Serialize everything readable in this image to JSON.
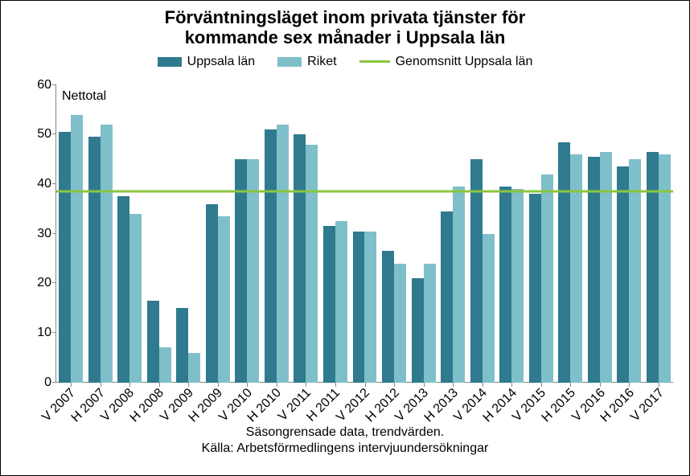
{
  "title_line1": "Förväntningsläget inom privata tjänster för",
  "title_line2": "kommande sex månader i Uppsala län",
  "title_fontsize": 22,
  "legend": {
    "series1": "Uppsala län",
    "series2": "Riket",
    "series3": "Genomsnitt Uppsala län"
  },
  "ylabel": "Nettotal",
  "chart": {
    "type": "bar",
    "categories": [
      "V 2007",
      "H 2007",
      "V 2008",
      "H 2008",
      "V 2009",
      "H 2009",
      "V 2010",
      "H 2010",
      "V 2011",
      "H 2011",
      "V 2012",
      "H 2012",
      "V 2013",
      "H 2013",
      "V 2014",
      "H 2014",
      "V 2015",
      "H 2015",
      "V 2016",
      "H 2016",
      "V 2017"
    ],
    "series": [
      {
        "name": "Uppsala län",
        "color": "#2f7a8e",
        "values": [
          50.5,
          49.5,
          37.5,
          16.5,
          15.0,
          36.0,
          45.0,
          51.0,
          50.0,
          31.5,
          30.5,
          26.5,
          21.0,
          34.5,
          45.0,
          39.5,
          38.0,
          48.5,
          45.5,
          43.5,
          46.5
        ]
      },
      {
        "name": "Riket",
        "color": "#7fbfca",
        "values": [
          54.0,
          52.0,
          34.0,
          7.0,
          6.0,
          33.5,
          45.0,
          52.0,
          48.0,
          32.5,
          30.5,
          24.0,
          24.0,
          39.5,
          30.0,
          39.0,
          42.0,
          46.0,
          46.5,
          45.0,
          46.0
        ]
      }
    ],
    "avg_line": {
      "value": 38.5,
      "color": "#8bc53f",
      "width": 3
    },
    "ylim": [
      0,
      60
    ],
    "ytick_step": 10,
    "background": "#ffffff",
    "bar_gap_ratio": 0.18,
    "category_label_rotation": -45,
    "category_label_fontsize": 16,
    "axis_color": "#888888"
  },
  "footer_line1": "Säsongrensade data, trendvärden.",
  "footer_line2": "Källa: Arbetsförmedlingens intervjuundersökningar"
}
